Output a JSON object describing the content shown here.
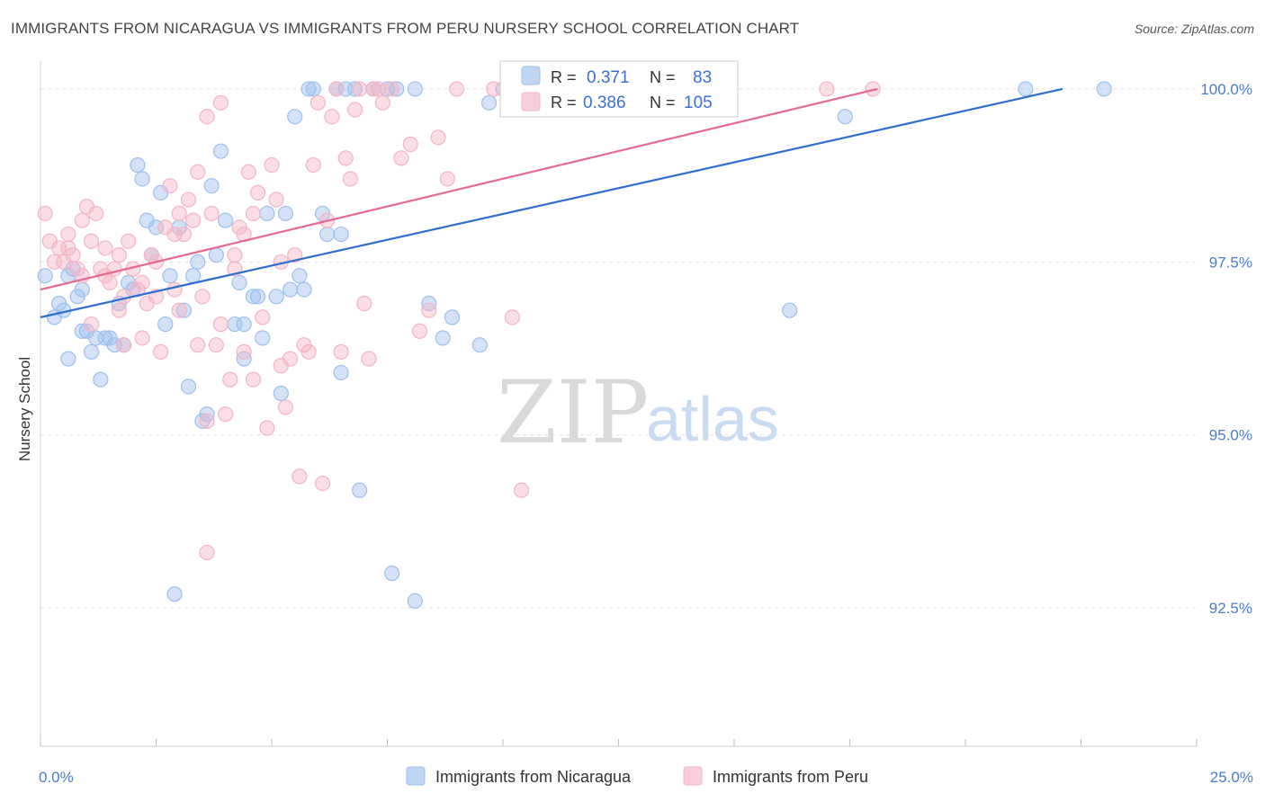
{
  "title": "IMMIGRANTS FROM NICARAGUA VS IMMIGRANTS FROM PERU NURSERY SCHOOL CORRELATION CHART",
  "source": "Source: ZipAtlas.com",
  "watermark": {
    "zip": "ZIP",
    "atlas": "atlas"
  },
  "legend": {
    "series": [
      {
        "r_label": "R =",
        "r_value": "0.371",
        "n_label": "N =",
        "n_value": "83",
        "color": "#9dbfee"
      },
      {
        "r_label": "R =",
        "r_value": "0.386",
        "n_label": "N =",
        "n_value": "105",
        "color": "#f4b4c6"
      }
    ]
  },
  "bottom_legend": [
    {
      "label": "Immigrants from Nicaragua",
      "color": "#9dbfee"
    },
    {
      "label": "Immigrants from Peru",
      "color": "#f4b4c6"
    }
  ],
  "chart_data": {
    "type": "scatter",
    "title": "IMMIGRANTS FROM NICARAGUA VS IMMIGRANTS FROM PERU NURSERY SCHOOL CORRELATION CHART",
    "xlabel": "",
    "ylabel": "Nursery School",
    "xlim": [
      0,
      25
    ],
    "ylim": [
      90.5,
      100.35
    ],
    "x_tick_labels": [
      {
        "value": 0,
        "label": "0.0%"
      },
      {
        "value": 25,
        "label": "25.0%"
      }
    ],
    "y_tick_labels": [
      {
        "value": 100,
        "label": "100.0%"
      },
      {
        "value": 97.5,
        "label": "97.5%"
      },
      {
        "value": 95,
        "label": "95.0%"
      },
      {
        "value": 92.5,
        "label": "92.5%"
      }
    ],
    "grid": true,
    "series": [
      {
        "name": "Immigrants from Nicaragua",
        "color": "#9dbfee",
        "line_color": "#2e6fce",
        "trend": {
          "x": [
            0,
            22.1
          ],
          "y": [
            96.7,
            100.0
          ]
        },
        "points": [
          [
            0.1,
            97.3
          ],
          [
            0.3,
            96.7
          ],
          [
            0.4,
            96.9
          ],
          [
            0.5,
            96.8
          ],
          [
            0.6,
            97.3
          ],
          [
            0.6,
            96.1
          ],
          [
            0.7,
            97.4
          ],
          [
            0.8,
            97.0
          ],
          [
            0.9,
            96.5
          ],
          [
            0.9,
            97.1
          ],
          [
            1.0,
            96.5
          ],
          [
            1.1,
            96.2
          ],
          [
            1.2,
            96.4
          ],
          [
            1.3,
            95.8
          ],
          [
            1.4,
            96.4
          ],
          [
            1.5,
            96.4
          ],
          [
            1.6,
            96.3
          ],
          [
            1.7,
            96.9
          ],
          [
            1.8,
            96.3
          ],
          [
            1.9,
            97.2
          ],
          [
            2.0,
            97.1
          ],
          [
            2.1,
            98.9
          ],
          [
            2.2,
            98.7
          ],
          [
            2.3,
            98.1
          ],
          [
            2.4,
            97.6
          ],
          [
            2.5,
            98.0
          ],
          [
            2.6,
            98.5
          ],
          [
            2.7,
            96.6
          ],
          [
            2.8,
            97.3
          ],
          [
            2.9,
            92.7
          ],
          [
            3.0,
            98.0
          ],
          [
            3.1,
            96.8
          ],
          [
            3.2,
            95.7
          ],
          [
            3.3,
            97.3
          ],
          [
            3.4,
            97.5
          ],
          [
            3.5,
            95.2
          ],
          [
            3.6,
            95.3
          ],
          [
            3.7,
            98.6
          ],
          [
            3.8,
            97.6
          ],
          [
            3.9,
            99.1
          ],
          [
            4.0,
            98.1
          ],
          [
            4.2,
            96.6
          ],
          [
            4.3,
            97.2
          ],
          [
            4.4,
            96.1
          ],
          [
            4.4,
            96.6
          ],
          [
            4.6,
            97.0
          ],
          [
            4.7,
            97.0
          ],
          [
            4.8,
            96.4
          ],
          [
            4.9,
            98.2
          ],
          [
            5.1,
            97.0
          ],
          [
            5.2,
            95.6
          ],
          [
            5.3,
            98.2
          ],
          [
            5.4,
            97.1
          ],
          [
            5.5,
            99.6
          ],
          [
            5.6,
            97.3
          ],
          [
            5.7,
            97.1
          ],
          [
            5.8,
            100.0
          ],
          [
            5.9,
            100.0
          ],
          [
            6.1,
            98.2
          ],
          [
            6.2,
            97.9
          ],
          [
            6.4,
            100.0
          ],
          [
            6.5,
            95.9
          ],
          [
            6.5,
            97.9
          ],
          [
            6.6,
            100.0
          ],
          [
            6.8,
            100.0
          ],
          [
            6.9,
            94.2
          ],
          [
            7.2,
            100.0
          ],
          [
            7.5,
            100.0
          ],
          [
            7.6,
            93.0
          ],
          [
            7.7,
            100.0
          ],
          [
            8.1,
            100.0
          ],
          [
            8.1,
            92.6
          ],
          [
            8.4,
            96.9
          ],
          [
            8.7,
            96.4
          ],
          [
            8.9,
            96.7
          ],
          [
            9.5,
            96.3
          ],
          [
            9.7,
            99.8
          ],
          [
            10.0,
            100.0
          ],
          [
            10.2,
            100.0
          ],
          [
            10.6,
            100.0
          ],
          [
            16.2,
            96.8
          ],
          [
            17.4,
            99.6
          ],
          [
            21.3,
            100.0
          ],
          [
            23.0,
            100.0
          ]
        ]
      },
      {
        "name": "Immigrants from Peru",
        "color": "#f4b4c6",
        "line_color": "#e46a93",
        "trend": {
          "x": [
            0,
            18.1
          ],
          "y": [
            97.1,
            100.0
          ]
        },
        "points": [
          [
            0.1,
            98.2
          ],
          [
            0.2,
            97.8
          ],
          [
            0.3,
            97.5
          ],
          [
            0.4,
            97.7
          ],
          [
            0.5,
            97.5
          ],
          [
            0.6,
            97.9
          ],
          [
            0.7,
            97.6
          ],
          [
            0.8,
            97.4
          ],
          [
            0.9,
            97.3
          ],
          [
            1.0,
            98.3
          ],
          [
            1.1,
            97.8
          ],
          [
            1.2,
            98.2
          ],
          [
            1.3,
            97.4
          ],
          [
            1.4,
            97.7
          ],
          [
            1.5,
            97.2
          ],
          [
            1.6,
            97.4
          ],
          [
            1.7,
            96.8
          ],
          [
            1.8,
            97.0
          ],
          [
            1.9,
            97.8
          ],
          [
            2.0,
            97.4
          ],
          [
            2.1,
            97.1
          ],
          [
            2.2,
            97.2
          ],
          [
            2.3,
            96.9
          ],
          [
            2.4,
            97.6
          ],
          [
            2.5,
            97.5
          ],
          [
            2.6,
            96.2
          ],
          [
            2.7,
            98.0
          ],
          [
            2.8,
            98.6
          ],
          [
            2.9,
            97.1
          ],
          [
            3.0,
            98.2
          ],
          [
            3.1,
            97.9
          ],
          [
            3.2,
            98.4
          ],
          [
            3.3,
            98.1
          ],
          [
            3.4,
            96.3
          ],
          [
            3.5,
            97.0
          ],
          [
            3.6,
            99.6
          ],
          [
            3.7,
            98.2
          ],
          [
            3.8,
            96.3
          ],
          [
            3.9,
            99.8
          ],
          [
            4.0,
            95.3
          ],
          [
            4.1,
            95.8
          ],
          [
            4.2,
            97.6
          ],
          [
            4.3,
            98.0
          ],
          [
            4.4,
            96.2
          ],
          [
            4.5,
            98.8
          ],
          [
            4.6,
            98.2
          ],
          [
            4.7,
            98.5
          ],
          [
            4.8,
            96.7
          ],
          [
            4.9,
            95.1
          ],
          [
            5.0,
            98.9
          ],
          [
            5.1,
            98.4
          ],
          [
            5.2,
            97.5
          ],
          [
            5.3,
            95.4
          ],
          [
            5.4,
            96.1
          ],
          [
            5.5,
            97.6
          ],
          [
            5.6,
            94.4
          ],
          [
            5.7,
            96.3
          ],
          [
            5.8,
            96.2
          ],
          [
            5.9,
            98.9
          ],
          [
            6.0,
            99.8
          ],
          [
            6.1,
            94.3
          ],
          [
            6.2,
            98.1
          ],
          [
            6.3,
            99.6
          ],
          [
            6.4,
            100.0
          ],
          [
            6.5,
            96.2
          ],
          [
            6.6,
            99.0
          ],
          [
            6.7,
            98.7
          ],
          [
            6.8,
            99.7
          ],
          [
            6.9,
            100.0
          ],
          [
            7.0,
            96.9
          ],
          [
            7.1,
            96.1
          ],
          [
            7.2,
            100.0
          ],
          [
            7.3,
            100.0
          ],
          [
            7.4,
            99.8
          ],
          [
            7.6,
            100.0
          ],
          [
            7.8,
            99.0
          ],
          [
            8.0,
            99.2
          ],
          [
            8.2,
            96.5
          ],
          [
            8.4,
            96.8
          ],
          [
            8.6,
            99.3
          ],
          [
            8.8,
            98.7
          ],
          [
            9.0,
            100.0
          ],
          [
            9.8,
            100.0
          ],
          [
            10.2,
            96.7
          ],
          [
            10.4,
            94.2
          ],
          [
            0.6,
            97.7
          ],
          [
            1.4,
            97.3
          ],
          [
            2.9,
            97.9
          ],
          [
            3.6,
            95.2
          ],
          [
            4.2,
            97.4
          ],
          [
            1.8,
            96.3
          ],
          [
            2.5,
            97.0
          ],
          [
            3.0,
            96.8
          ],
          [
            3.9,
            96.6
          ],
          [
            4.4,
            97.9
          ],
          [
            5.2,
            96.0
          ],
          [
            1.1,
            96.6
          ],
          [
            2.2,
            96.4
          ],
          [
            3.4,
            98.8
          ],
          [
            4.6,
            95.8
          ],
          [
            0.9,
            98.1
          ],
          [
            1.7,
            97.6
          ],
          [
            3.6,
            93.3
          ],
          [
            17.0,
            100.0
          ],
          [
            18.0,
            100.0
          ]
        ]
      }
    ]
  }
}
